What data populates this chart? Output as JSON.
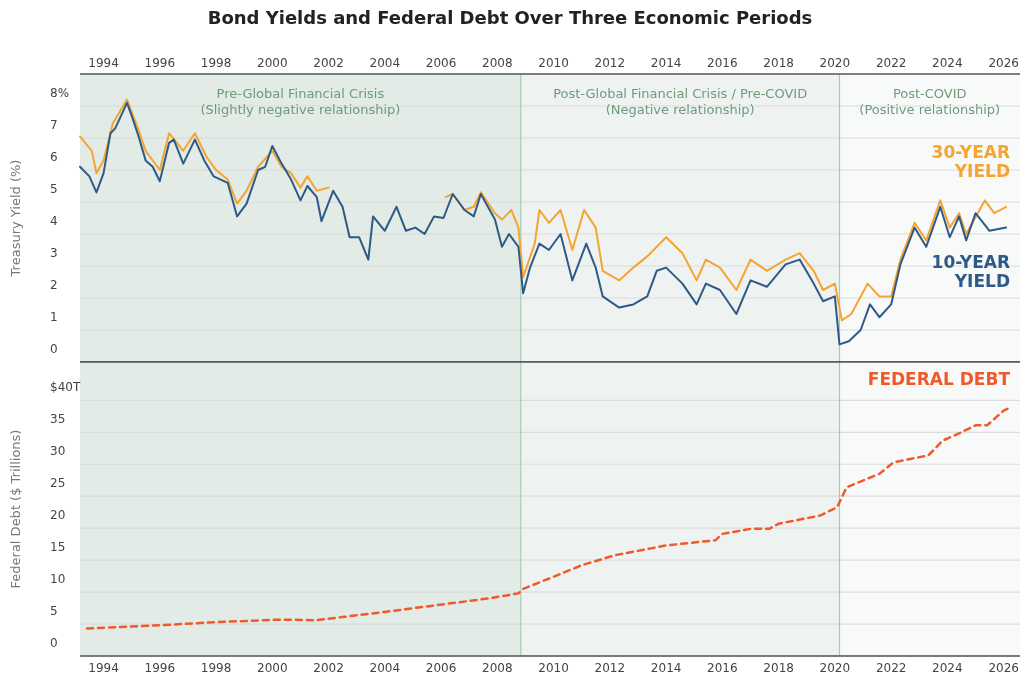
{
  "chart_data": [
    {
      "type": "line",
      "title": "Bond Yields and Federal Debt Over Three Economic Periods",
      "ylabel": "Treasury Yield (%)",
      "xlim": [
        "1993-03",
        "2026-08"
      ],
      "xticks": [
        "1994",
        "1996",
        "1998",
        "2000",
        "2002",
        "2004",
        "2006",
        "2008",
        "2010",
        "2012",
        "2014",
        "2016",
        "2018",
        "2020",
        "2022",
        "2024",
        "2026"
      ],
      "ylim": [
        0,
        9
      ],
      "yticks": [
        0,
        1,
        2,
        3,
        4,
        5,
        6,
        7,
        {
          "value": 8,
          "label": "8%"
        }
      ],
      "grid": "y",
      "bands": [
        {
          "axis": "x",
          "from": "1993-03",
          "to": "2008-11",
          "label": "Pre-Global Financial Crisis\n(Slightly negative relationship)",
          "color": "#e2ebe5"
        },
        {
          "axis": "x",
          "from": "2008-11",
          "to": "2020-03",
          "label": "Post-Global Financial Crisis / Pre-COVID\n(Negative relationship)",
          "color": "#eef3f2"
        },
        {
          "axis": "x",
          "from": "2020-03",
          "to": "2026-08",
          "label": "Post-COVID\n(Positive relationship)",
          "color": "#f7faf9"
        }
      ],
      "ref_lines": [
        {
          "axis": "x",
          "value": "2008-11",
          "color": "#a9c9b2"
        },
        {
          "axis": "x",
          "value": "2020-03",
          "color": "#a9c9b2"
        }
      ],
      "series": [
        {
          "name": "30-YEAR\nYIELD",
          "color": "#f5a431",
          "x": [
            "1993-03",
            "1993-08",
            "1993-10",
            "1994-01",
            "1994-05",
            "1994-11",
            "1995-04",
            "1995-07",
            "1996-01",
            "1996-05",
            "1996-11",
            "1997-04",
            "1997-09",
            "1998-01",
            "1998-06",
            "1998-10",
            "1999-02",
            "1999-07",
            "2000-01",
            "2000-05",
            "2000-09",
            "2001-01",
            "2001-04",
            "2001-08",
            "2002-01",
            "2004-01",
            "2006-03",
            "2006-06",
            "2006-11",
            "2007-03",
            "2007-06",
            "2007-12",
            "2008-03",
            "2008-07",
            "2008-10",
            "2008-12",
            "2009-05",
            "2009-07",
            "2009-11",
            "2010-04",
            "2010-09",
            "2011-02",
            "2011-07",
            "2011-10",
            "2012-05",
            "2012-11",
            "2013-05",
            "2014-01",
            "2014-08",
            "2015-02",
            "2015-06",
            "2015-12",
            "2016-07",
            "2017-01",
            "2017-08",
            "2018-04",
            "2018-10",
            "2019-04",
            "2019-08",
            "2020-01",
            "2020-04",
            "2020-08",
            "2021-03",
            "2021-08",
            "2022-01",
            "2022-05",
            "2022-11",
            "2023-04",
            "2023-10",
            "2024-02",
            "2024-06",
            "2024-09",
            "2025-05",
            "2025-09",
            "2026-02"
          ],
          "values": [
            7.05,
            6.6,
            5.9,
            6.3,
            7.45,
            8.2,
            7.25,
            6.6,
            6.0,
            7.15,
            6.6,
            7.15,
            6.4,
            6.0,
            5.7,
            4.95,
            5.35,
            6.1,
            6.6,
            6.1,
            5.9,
            5.45,
            5.8,
            5.35,
            5.45,
            null,
            5.15,
            5.25,
            4.75,
            4.85,
            5.3,
            4.65,
            4.45,
            4.75,
            4.2,
            2.65,
            3.7,
            4.75,
            4.35,
            4.75,
            3.5,
            4.75,
            4.2,
            2.85,
            2.55,
            2.95,
            3.3,
            3.9,
            3.4,
            2.55,
            3.2,
            2.95,
            2.25,
            3.2,
            2.85,
            3.2,
            3.4,
            2.85,
            2.25,
            2.45,
            1.3,
            1.5,
            2.45,
            2.05,
            2.05,
            3.2,
            4.35,
            3.8,
            5.05,
            4.2,
            4.65,
            4.0,
            5.05,
            4.65,
            4.85
          ]
        },
        {
          "name": "10-YEAR\nYIELD",
          "color": "#2e5a87",
          "x": [
            "1993-03",
            "1993-07",
            "1993-10",
            "1994-01",
            "1994-04",
            "1994-06",
            "1994-11",
            "1995-01",
            "1995-04",
            "1995-07",
            "1995-10",
            "1996-01",
            "1996-05",
            "1996-07",
            "1996-11",
            "1997-04",
            "1997-08",
            "1997-12",
            "1998-06",
            "1998-10",
            "1999-02",
            "1999-07",
            "1999-10",
            "2000-01",
            "2000-05",
            "2000-09",
            "2001-01",
            "2001-04",
            "2001-08",
            "2001-10",
            "2002-03",
            "2002-07",
            "2002-10",
            "2003-02",
            "2003-06",
            "2003-08",
            "2004-01",
            "2004-06",
            "2004-10",
            "2005-02",
            "2005-06",
            "2005-10",
            "2006-02",
            "2006-06",
            "2006-11",
            "2007-03",
            "2007-06",
            "2007-12",
            "2008-03",
            "2008-06",
            "2008-10",
            "2008-12",
            "2009-03",
            "2009-07",
            "2009-11",
            "2010-04",
            "2010-09",
            "2011-03",
            "2011-07",
            "2011-10",
            "2012-05",
            "2012-11",
            "2013-05",
            "2013-09",
            "2014-01",
            "2014-08",
            "2015-02",
            "2015-06",
            "2015-12",
            "2016-07",
            "2017-01",
            "2017-08",
            "2018-04",
            "2018-10",
            "2019-04",
            "2019-08",
            "2020-01",
            "2020-03",
            "2020-07",
            "2020-12",
            "2021-04",
            "2021-08",
            "2022-01",
            "2022-05",
            "2022-11",
            "2023-04",
            "2023-10",
            "2024-02",
            "2024-06",
            "2024-09",
            "2025-01",
            "2025-07",
            "2026-02"
          ],
          "values": [
            6.1,
            5.8,
            5.3,
            5.9,
            7.15,
            7.3,
            8.1,
            7.7,
            7.05,
            6.3,
            6.1,
            5.65,
            6.85,
            6.95,
            6.2,
            6.95,
            6.3,
            5.8,
            5.6,
            4.55,
            4.95,
            6.0,
            6.1,
            6.75,
            6.2,
            5.7,
            5.05,
            5.5,
            5.15,
            4.4,
            5.35,
            4.85,
            3.9,
            3.9,
            3.2,
            4.55,
            4.1,
            4.85,
            4.1,
            4.2,
            4.0,
            4.55,
            4.5,
            5.25,
            4.75,
            4.55,
            5.25,
            4.45,
            3.6,
            4.0,
            3.6,
            2.15,
            2.95,
            3.7,
            3.5,
            4.0,
            2.55,
            3.7,
            2.95,
            2.05,
            1.7,
            1.8,
            2.05,
            2.85,
            2.95,
            2.45,
            1.8,
            2.45,
            2.25,
            1.5,
            2.55,
            2.35,
            3.05,
            3.2,
            2.45,
            1.9,
            2.05,
            0.55,
            0.65,
            1.0,
            1.8,
            1.4,
            1.8,
            3.05,
            4.2,
            3.6,
            4.85,
            3.9,
            4.55,
            3.8,
            4.65,
            4.1,
            4.2
          ]
        }
      ]
    },
    {
      "type": "line",
      "ylabel": "Federal Debt ($ Trillions)",
      "xlim": [
        "1993-03",
        "2026-08"
      ],
      "xticks": [
        "1994",
        "1996",
        "1998",
        "2000",
        "2002",
        "2004",
        "2006",
        "2008",
        "2010",
        "2012",
        "2014",
        "2016",
        "2018",
        "2020",
        "2022",
        "2024",
        "2026"
      ],
      "ylim": [
        0,
        46
      ],
      "yticks": [
        0,
        5,
        10,
        15,
        20,
        25,
        30,
        35,
        {
          "value": 40,
          "label": "$40T"
        }
      ],
      "grid": "y",
      "line_style": "dashed",
      "bands": [
        {
          "axis": "x",
          "from": "1993-03",
          "to": "2008-11",
          "color": "#e2ebe5"
        },
        {
          "axis": "x",
          "from": "2008-11",
          "to": "2020-03",
          "color": "#eef3f2"
        },
        {
          "axis": "x",
          "from": "2020-03",
          "to": "2026-08",
          "color": "#f7faf9"
        }
      ],
      "ref_lines": [
        {
          "axis": "x",
          "value": "2008-11",
          "color": "#a9c9b2"
        },
        {
          "axis": "x",
          "value": "2020-03",
          "color": "#a9c9b2"
        }
      ],
      "series": [
        {
          "name": "FEDERAL DEBT",
          "color": "#f05a2a",
          "x": [
            "1993-06",
            "1996-01",
            "1998-01",
            "2000-05",
            "2001-08",
            "2002-07",
            "2004-01",
            "2005-10",
            "2007-09",
            "2008-10",
            "2008-12",
            "2010-01",
            "2011-01",
            "2012-03",
            "2013-06",
            "2014-01",
            "2015-10",
            "2016-01",
            "2017-01",
            "2017-09",
            "2018-01",
            "2019-07",
            "2020-02",
            "2020-06",
            "2021-08",
            "2022-02",
            "2023-05",
            "2023-11",
            "2024-07",
            "2025-01",
            "2025-06",
            "2026-01",
            "2026-04"
          ],
          "values": [
            4.3,
            4.8,
            5.3,
            5.7,
            5.6,
            6.1,
            6.9,
            7.9,
            9.0,
            9.8,
            10.5,
            12.4,
            14.2,
            15.75,
            16.8,
            17.3,
            18.1,
            19.1,
            19.9,
            19.9,
            20.7,
            22.0,
            23.3,
            26.4,
            28.5,
            30.3,
            31.4,
            33.7,
            35.0,
            36.1,
            36.1,
            38.4,
            38.9
          ]
        }
      ]
    }
  ]
}
